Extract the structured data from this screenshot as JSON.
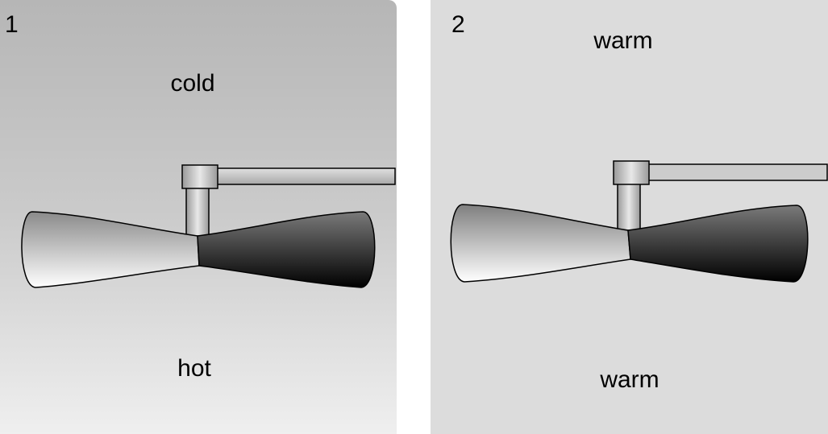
{
  "panels": [
    {
      "number": "1",
      "top_label": "cold",
      "bottom_label": "hot",
      "background": "gradient"
    },
    {
      "number": "2",
      "top_label": "warm",
      "bottom_label": "warm",
      "background": "#dcdcdc"
    }
  ],
  "colors": {
    "panel1_top": "#b6b6b6",
    "panel1_bottom": "#efefef",
    "panel2": "#dcdcdc",
    "outline": "#000000"
  }
}
